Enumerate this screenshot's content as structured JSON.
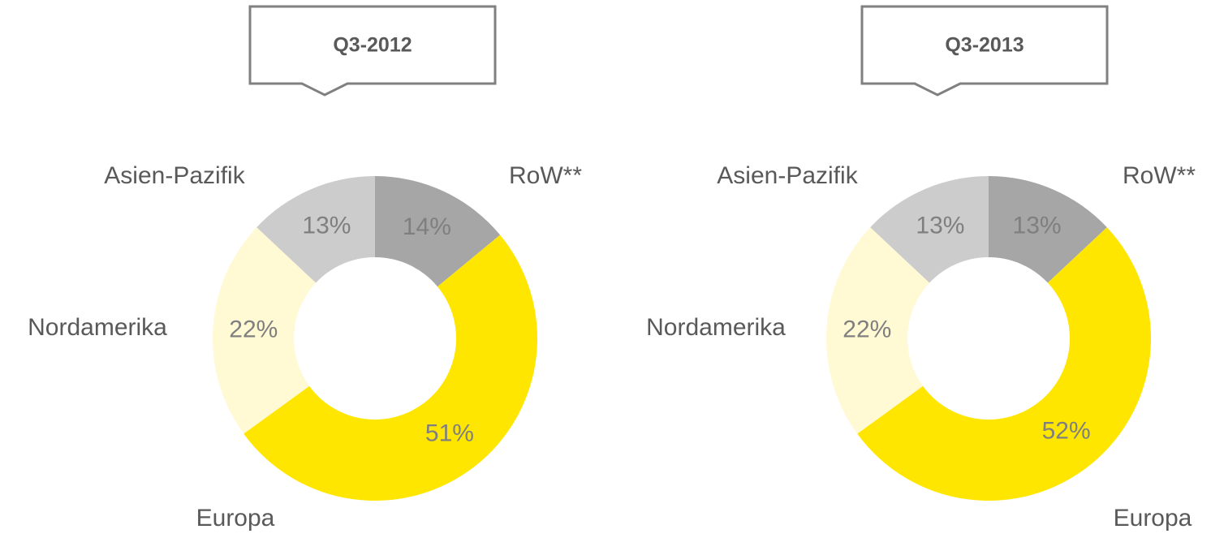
{
  "chart_data": [
    {
      "type": "donut",
      "title": "Q3-2012",
      "categories": [
        "RoW**",
        "Europa",
        "Nordamerika",
        "Asien-Pazifik"
      ],
      "values": [
        14,
        51,
        22,
        13
      ],
      "value_labels": [
        "14%",
        "51%",
        "22%",
        "13%"
      ],
      "colors": [
        "#a6a6a6",
        "#ffe600",
        "#fff9d4",
        "#cccccc"
      ]
    },
    {
      "type": "donut",
      "title": "Q3-2013",
      "categories": [
        "RoW**",
        "Europa",
        "Nordamerika",
        "Asien-Pazifik"
      ],
      "values": [
        13,
        52,
        22,
        13
      ],
      "value_labels": [
        "13%",
        "52%",
        "22%",
        "13%"
      ],
      "colors": [
        "#a6a6a6",
        "#ffe600",
        "#fff9d4",
        "#cccccc"
      ]
    }
  ]
}
